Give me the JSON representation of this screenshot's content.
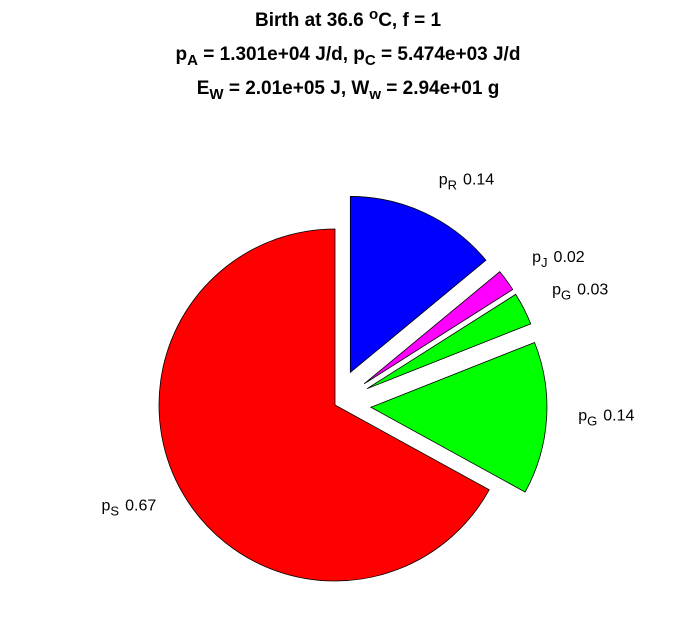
{
  "chart_data": {
    "type": "pie",
    "title": [
      [
        "Birth at 36.6 ",
        {
          "sup": "o"
        },
        "C, f = 1"
      ],
      [
        "p",
        {
          "sub": "A"
        },
        " = 1.301e+04 J/d, p",
        {
          "sub": "C"
        },
        " = 5.474e+03 J/d"
      ],
      [
        "E",
        {
          "sub": "W"
        },
        " = 2.01e+05 J, W",
        {
          "sub": "w"
        },
        " = 2.94e+01 g"
      ]
    ],
    "categories": [
      {
        "text": "p",
        "sub": "R"
      },
      {
        "text": "p",
        "sub": "J"
      },
      {
        "text": "p",
        "sub": "G"
      },
      {
        "text": "p",
        "sub": "G"
      },
      {
        "text": "p",
        "sub": "S"
      }
    ],
    "values": [
      0.14,
      0.02,
      0.03,
      0.14,
      0.67
    ],
    "colors": [
      "#0000ff",
      "#ff00ff",
      "#00ff00",
      "#00ff00",
      "#ff0000"
    ],
    "explode": [
      1,
      1,
      1,
      1,
      0
    ]
  }
}
